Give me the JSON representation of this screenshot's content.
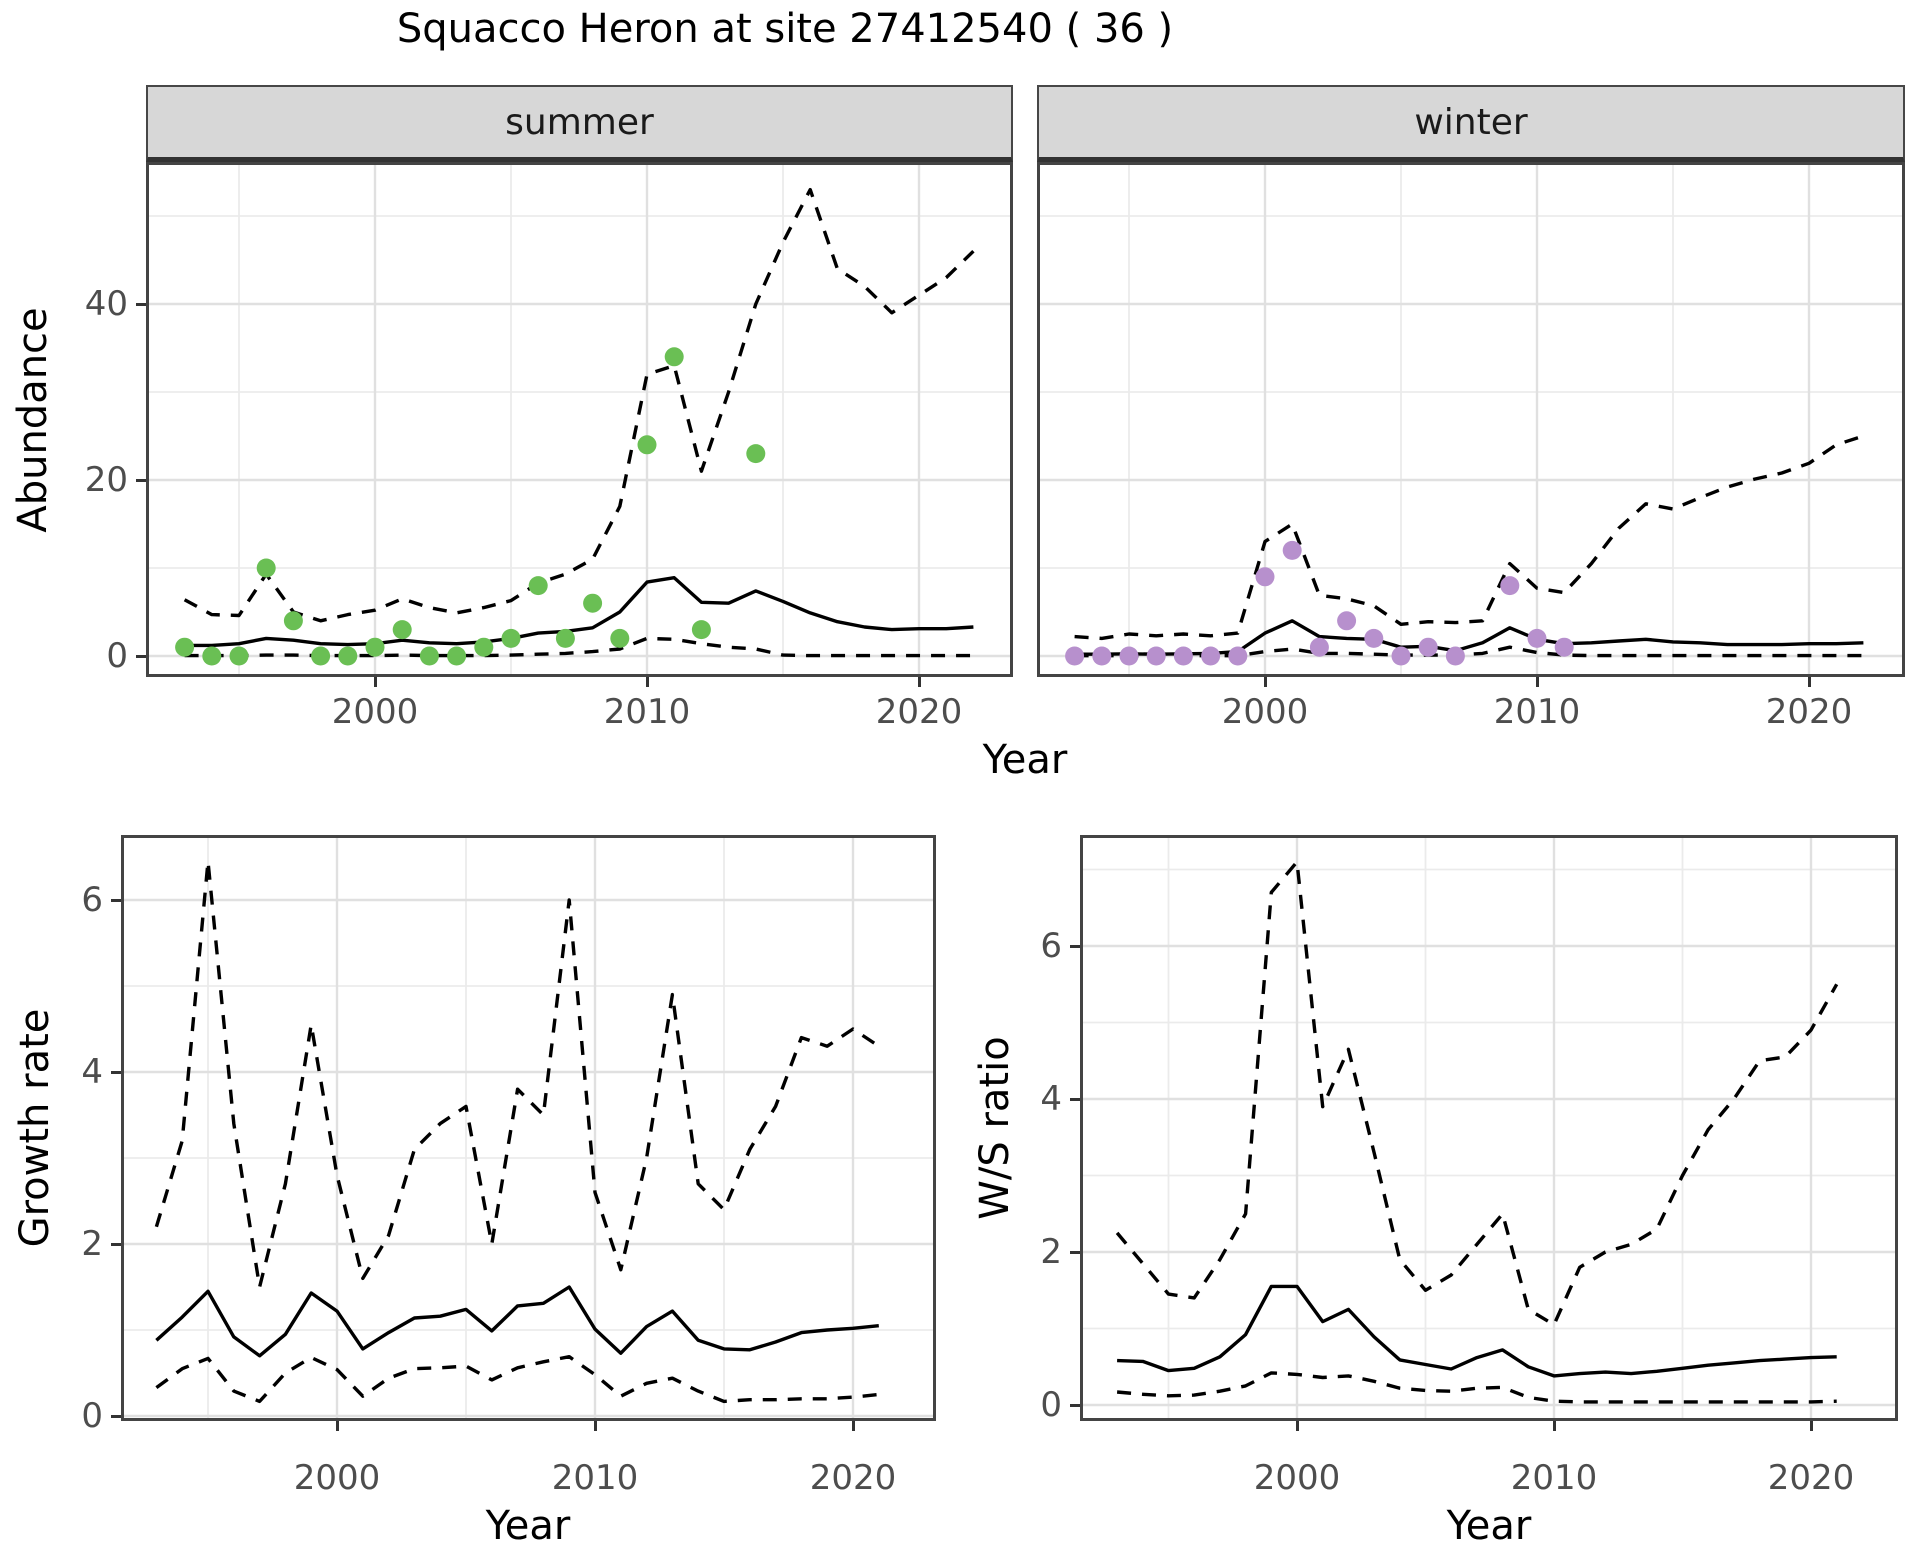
{
  "title": "Squacco Heron at site 27412540 ( 36 )",
  "colors": {
    "summer_points": "#6abf54",
    "winter_points": "#b790cd",
    "line": "#000000",
    "grid_major": "#e0e0e0",
    "grid_minor": "#ebebeb",
    "panel_border": "#444444",
    "strip_bg": "#d7d7d7",
    "axis_text": "#4d4d4d"
  },
  "chart_data": [
    {
      "id": "abundance-summer",
      "type": "line",
      "facet": "summer",
      "x": {
        "label": "Year",
        "ticks": [
          2000,
          2010,
          2020
        ],
        "minor_ticks": [
          1995,
          2005,
          2015
        ],
        "range": [
          1991.6,
          2023.4
        ]
      },
      "y": {
        "label": "Abundance",
        "ticks": [
          0,
          20,
          40
        ],
        "minor_ticks": [
          10,
          30,
          50
        ],
        "range": [
          -2.4,
          56.1
        ]
      },
      "years": [
        1993,
        1994,
        1995,
        1996,
        1997,
        1998,
        1999,
        2000,
        2001,
        2002,
        2003,
        2004,
        2005,
        2006,
        2007,
        2008,
        2009,
        2010,
        2011,
        2012,
        2013,
        2014,
        2015,
        2016,
        2017,
        2018,
        2019,
        2020,
        2021,
        2022
      ],
      "series": [
        {
          "name": "upper-credible",
          "style": "dashed",
          "values": [
            6.4,
            4.7,
            4.6,
            9.3,
            5.0,
            4.0,
            4.7,
            5.2,
            6.5,
            5.5,
            4.9,
            5.5,
            6.3,
            8.3,
            9.3,
            11.0,
            17.0,
            32.0,
            33.0,
            21.0,
            30.0,
            40.0,
            47.0,
            53.0,
            44.0,
            42.0,
            39.0,
            41.0,
            43.0,
            46.0
          ]
        },
        {
          "name": "lower-credible",
          "style": "dashed",
          "values": [
            0.05,
            0.05,
            0.05,
            0.1,
            0.1,
            0.05,
            0.05,
            0.05,
            0.1,
            0.05,
            0.05,
            0.05,
            0.1,
            0.2,
            0.3,
            0.5,
            0.8,
            2.0,
            1.9,
            1.4,
            1.0,
            0.8,
            0.1,
            0.05,
            0.05,
            0.05,
            0.05,
            0.05,
            0.05,
            0.05
          ]
        },
        {
          "name": "median",
          "style": "solid",
          "values": [
            1.2,
            1.2,
            1.4,
            2.0,
            1.8,
            1.4,
            1.3,
            1.4,
            1.8,
            1.5,
            1.4,
            1.6,
            2.0,
            2.6,
            2.8,
            3.2,
            5.0,
            8.4,
            8.9,
            6.1,
            6.0,
            7.4,
            6.2,
            4.9,
            3.9,
            3.3,
            3.0,
            3.1,
            3.1,
            3.3
          ]
        }
      ],
      "points": {
        "name": "observed-counts",
        "color_key": "summer_points",
        "data": [
          [
            1993,
            1
          ],
          [
            1994,
            0
          ],
          [
            1995,
            0
          ],
          [
            1996,
            10
          ],
          [
            1997,
            4
          ],
          [
            1998,
            0
          ],
          [
            1999,
            0
          ],
          [
            2000,
            1
          ],
          [
            2001,
            3
          ],
          [
            2002,
            0
          ],
          [
            2003,
            0
          ],
          [
            2004,
            1
          ],
          [
            2005,
            2
          ],
          [
            2006,
            8
          ],
          [
            2007,
            2
          ],
          [
            2008,
            6
          ],
          [
            2009,
            2
          ],
          [
            2010,
            24
          ],
          [
            2011,
            34
          ],
          [
            2012,
            3
          ],
          [
            2014,
            23
          ]
        ]
      }
    },
    {
      "id": "abundance-winter",
      "type": "line",
      "facet": "winter",
      "x": {
        "label": "Year",
        "ticks": [
          2000,
          2010,
          2020
        ],
        "minor_ticks": [
          1995,
          2005,
          2015
        ],
        "range": [
          1991.6,
          2023.4
        ]
      },
      "y": {
        "label": "Abundance",
        "ticks": [
          0,
          20,
          40
        ],
        "minor_ticks": [
          10,
          30,
          50
        ],
        "range": [
          -2.4,
          56.1
        ]
      },
      "years": [
        1993,
        1994,
        1995,
        1996,
        1997,
        1998,
        1999,
        2000,
        2001,
        2002,
        2003,
        2004,
        2005,
        2006,
        2007,
        2008,
        2009,
        2010,
        2011,
        2012,
        2013,
        2014,
        2015,
        2016,
        2017,
        2018,
        2019,
        2020,
        2021,
        2022
      ],
      "series": [
        {
          "name": "upper-credible",
          "style": "dashed",
          "values": [
            2.2,
            2.0,
            2.5,
            2.3,
            2.5,
            2.3,
            2.6,
            13.0,
            15.0,
            6.9,
            6.5,
            5.7,
            3.6,
            3.9,
            3.8,
            4.0,
            10.5,
            7.7,
            7.2,
            10.5,
            14.5,
            17.3,
            16.7,
            18.0,
            19.2,
            20.1,
            20.8,
            21.9,
            24.0,
            25.0
          ]
        },
        {
          "name": "lower-credible",
          "style": "dashed",
          "values": [
            0.03,
            0.03,
            0.03,
            0.03,
            0.03,
            0.03,
            0.03,
            0.5,
            0.8,
            0.3,
            0.3,
            0.2,
            0.1,
            0.1,
            0.1,
            0.3,
            1.0,
            0.4,
            0.1,
            0.05,
            0.05,
            0.05,
            0.05,
            0.05,
            0.05,
            0.05,
            0.05,
            0.05,
            0.05,
            0.05
          ]
        },
        {
          "name": "median",
          "style": "solid",
          "values": [
            0.2,
            0.2,
            0.25,
            0.2,
            0.25,
            0.3,
            0.5,
            2.6,
            4.0,
            2.2,
            2.0,
            1.9,
            1.0,
            1.1,
            0.6,
            1.5,
            3.2,
            1.9,
            1.4,
            1.5,
            1.7,
            1.9,
            1.6,
            1.5,
            1.3,
            1.3,
            1.3,
            1.4,
            1.4,
            1.5
          ]
        }
      ],
      "points": {
        "name": "observed-counts",
        "color_key": "winter_points",
        "data": [
          [
            1993,
            0
          ],
          [
            1994,
            0
          ],
          [
            1995,
            0
          ],
          [
            1996,
            0
          ],
          [
            1997,
            0
          ],
          [
            1998,
            0
          ],
          [
            1999,
            0
          ],
          [
            2000,
            9
          ],
          [
            2001,
            12
          ],
          [
            2002,
            1
          ],
          [
            2003,
            4
          ],
          [
            2004,
            2
          ],
          [
            2005,
            0
          ],
          [
            2006,
            1
          ],
          [
            2007,
            0
          ],
          [
            2009,
            8
          ],
          [
            2010,
            2
          ],
          [
            2011,
            1
          ]
        ]
      }
    },
    {
      "id": "growth-rate",
      "type": "line",
      "facet": "",
      "x": {
        "label": "Year",
        "ticks": [
          2000,
          2010,
          2020
        ],
        "minor_ticks": [
          1995,
          2005,
          2015
        ],
        "range": [
          1992.3,
          2023.9
        ]
      },
      "y": {
        "label": "Growth rate",
        "ticks": [
          0,
          2,
          4,
          6
        ],
        "minor_ticks": [
          1,
          3,
          5
        ],
        "range": [
          -0.06,
          6.76
        ]
      },
      "years": [
        1993,
        1994,
        1995,
        1996,
        1997,
        1998,
        1999,
        2000,
        2001,
        2002,
        2003,
        2004,
        2005,
        2006,
        2007,
        2008,
        2009,
        2010,
        2011,
        2012,
        2013,
        2014,
        2015,
        2016,
        2017,
        2018,
        2019,
        2020,
        2021
      ],
      "series": [
        {
          "name": "upper-credible",
          "style": "dashed",
          "values": [
            2.2,
            3.2,
            6.45,
            3.4,
            1.5,
            2.7,
            4.55,
            2.8,
            1.6,
            2.1,
            3.1,
            3.4,
            3.6,
            2.0,
            3.8,
            3.5,
            6.0,
            2.6,
            1.7,
            3.0,
            4.9,
            2.7,
            2.4,
            3.1,
            3.6,
            4.4,
            4.3,
            4.5,
            4.3
          ]
        },
        {
          "name": "lower-credible",
          "style": "dashed",
          "values": [
            0.33,
            0.55,
            0.67,
            0.29,
            0.17,
            0.5,
            0.68,
            0.54,
            0.23,
            0.44,
            0.55,
            0.56,
            0.58,
            0.42,
            0.56,
            0.63,
            0.69,
            0.48,
            0.23,
            0.38,
            0.44,
            0.29,
            0.17,
            0.19,
            0.19,
            0.2,
            0.2,
            0.22,
            0.25
          ]
        },
        {
          "name": "median",
          "style": "solid",
          "values": [
            0.88,
            1.15,
            1.45,
            0.92,
            0.7,
            0.95,
            1.43,
            1.22,
            0.78,
            0.97,
            1.14,
            1.16,
            1.24,
            0.99,
            1.28,
            1.31,
            1.5,
            1.01,
            0.73,
            1.04,
            1.22,
            0.88,
            0.78,
            0.77,
            0.86,
            0.97,
            1.0,
            1.02,
            1.05
          ]
        }
      ],
      "points": null
    },
    {
      "id": "ws-ratio",
      "type": "line",
      "facet": "",
      "x": {
        "label": "Year",
        "ticks": [
          2000,
          2010,
          2020
        ],
        "minor_ticks": [
          1995,
          2005,
          2015
        ],
        "range": [
          1991.6,
          2023.4
        ]
      },
      "y": {
        "label": "W/S ratio",
        "ticks": [
          0,
          2,
          4,
          6
        ],
        "minor_ticks": [
          1,
          3,
          5,
          7
        ],
        "range": [
          -0.07,
          7.45
        ]
      },
      "years": [
        1993,
        1994,
        1995,
        1996,
        1997,
        1998,
        1999,
        2000,
        2001,
        2002,
        2003,
        2004,
        2005,
        2006,
        2007,
        2008,
        2009,
        2010,
        2011,
        2012,
        2013,
        2014,
        2015,
        2016,
        2017,
        2018,
        2019,
        2020,
        2021
      ],
      "series": [
        {
          "name": "upper-credible",
          "style": "dashed",
          "values": [
            2.25,
            1.85,
            1.45,
            1.4,
            1.9,
            2.5,
            6.7,
            7.1,
            3.9,
            4.65,
            3.3,
            1.9,
            1.5,
            1.7,
            2.1,
            2.5,
            1.25,
            1.05,
            1.8,
            2.0,
            2.1,
            2.3,
            3.0,
            3.6,
            4.0,
            4.5,
            4.55,
            4.9,
            5.5
          ]
        },
        {
          "name": "lower-credible",
          "style": "dashed",
          "values": [
            0.17,
            0.14,
            0.12,
            0.13,
            0.18,
            0.25,
            0.42,
            0.4,
            0.36,
            0.38,
            0.31,
            0.22,
            0.19,
            0.18,
            0.22,
            0.23,
            0.1,
            0.05,
            0.04,
            0.04,
            0.04,
            0.04,
            0.04,
            0.04,
            0.04,
            0.04,
            0.04,
            0.04,
            0.05
          ]
        },
        {
          "name": "median",
          "style": "solid",
          "values": [
            0.58,
            0.57,
            0.45,
            0.48,
            0.63,
            0.92,
            1.55,
            1.55,
            1.09,
            1.25,
            0.89,
            0.59,
            0.53,
            0.47,
            0.62,
            0.72,
            0.5,
            0.38,
            0.41,
            0.43,
            0.41,
            0.44,
            0.48,
            0.52,
            0.55,
            0.58,
            0.6,
            0.62,
            0.63
          ]
        }
      ],
      "points": null
    }
  ]
}
